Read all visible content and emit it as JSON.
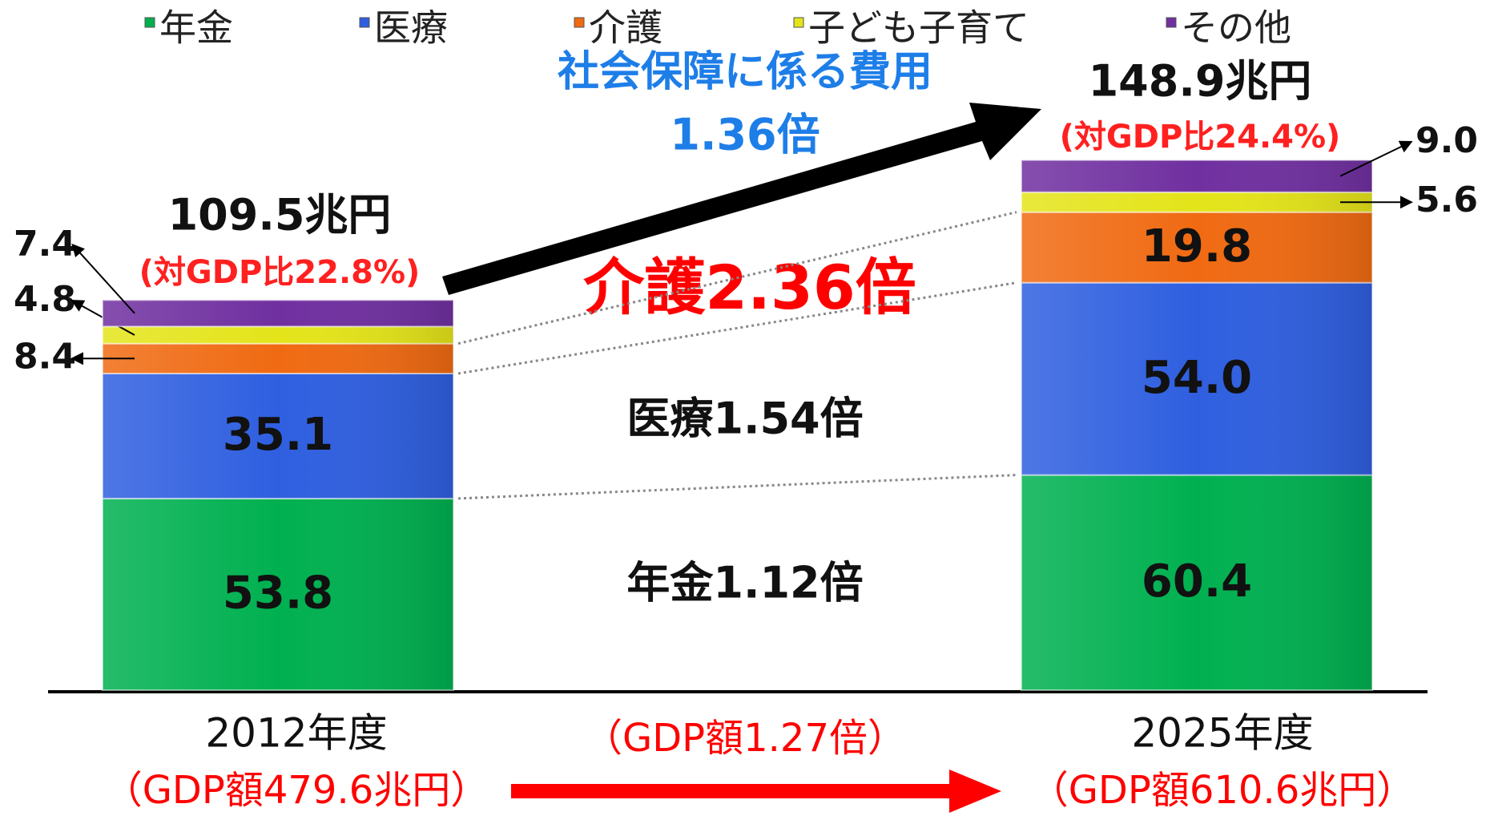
{
  "chart_data": {
    "type": "stacked_bar",
    "categories": [
      "2012年度",
      "2025年度"
    ],
    "series": [
      {
        "name": "年金",
        "color": "#00b050",
        "values": [
          53.8,
          60.4
        ],
        "value_labels": [
          "53.8",
          "60.4"
        ]
      },
      {
        "name": "医療",
        "color": "#2f5fe0",
        "values": [
          35.1,
          54.0
        ],
        "value_labels": [
          "35.1",
          "54.0"
        ]
      },
      {
        "name": "介護",
        "color": "#f06a12",
        "values": [
          8.4,
          19.8
        ],
        "value_labels": [
          "8.4",
          "19.8"
        ]
      },
      {
        "name": "子ども子育て",
        "color": "#e4e41a",
        "values": [
          4.8,
          5.6
        ],
        "value_labels": [
          "4.8",
          "5.6"
        ]
      },
      {
        "name": "その他",
        "color": "#7030a0",
        "values": [
          7.4,
          9.0
        ],
        "value_labels": [
          "7.4",
          "9.0"
        ]
      }
    ],
    "ylim": [
      0,
      160
    ],
    "total_labels": [
      "109.5兆円",
      "148.9兆円"
    ],
    "gdp_ratio_labels": [
      "(対GDP比22.8%)",
      "(対GDP比24.4%)"
    ],
    "gdp_labels": [
      "（GDP額479.6兆円）",
      "（GDP額610.6兆円）"
    ],
    "annotations": {
      "cost_title": "社会保障に係る費用",
      "cost_ratio": "1.36倍",
      "care_ratio": "介護2.36倍",
      "medical_ratio": "医療1.54倍",
      "pension_ratio": "年金1.12倍",
      "gdp_ratio": "（GDP額1.27倍）"
    }
  }
}
